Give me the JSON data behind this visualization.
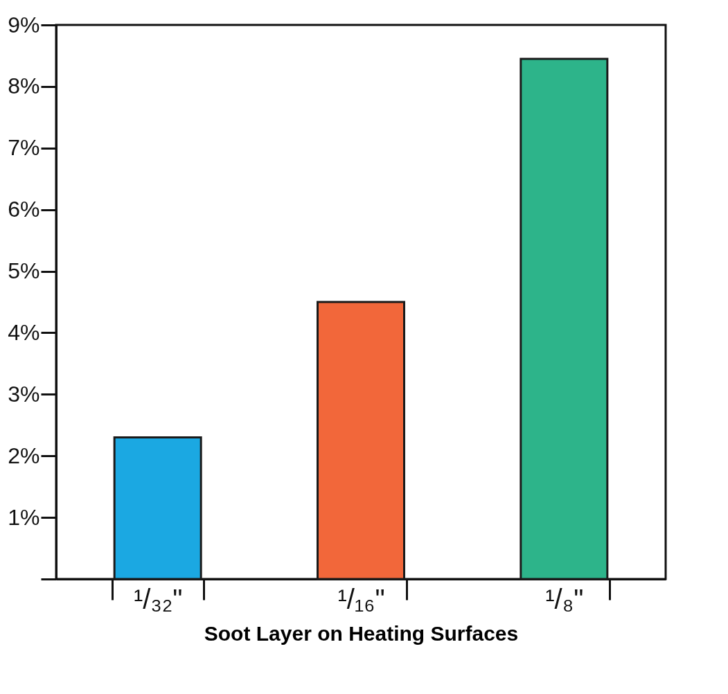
{
  "chart_data": {
    "type": "bar",
    "xlabel": "Soot Layer on Heating Surfaces",
    "categories": [
      "¹/₃₂\"",
      "¹/₁₆\"",
      "¹/₈\""
    ],
    "values": [
      2.3,
      4.5,
      8.45
    ],
    "colors": [
      "#1ba8e2",
      "#f2673a",
      "#2db48a"
    ],
    "ylim": [
      0,
      9
    ],
    "yticks": [
      {
        "value": 0,
        "label": null
      },
      {
        "value": 1,
        "label": "1%"
      },
      {
        "value": 2,
        "label": "2%"
      },
      {
        "value": 3,
        "label": "3%"
      },
      {
        "value": 4,
        "label": "4%"
      },
      {
        "value": 5,
        "label": "5%"
      },
      {
        "value": 6,
        "label": "6%"
      },
      {
        "value": 7,
        "label": "7%"
      },
      {
        "value": 8,
        "label": "8%"
      },
      {
        "value": 9,
        "label": "9%"
      }
    ],
    "grid": false
  }
}
